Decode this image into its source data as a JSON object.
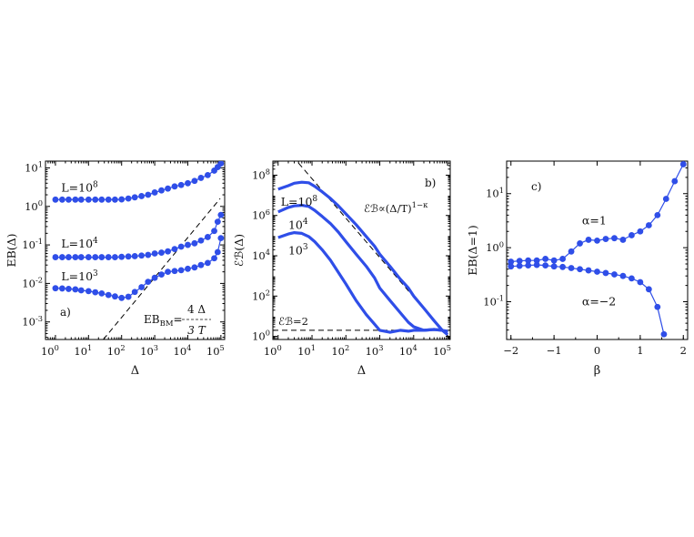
{
  "colors": {
    "series": "#2f4ee8",
    "axis": "#000000",
    "ref": "#000000"
  },
  "chart_data": [
    {
      "panel": "a",
      "type": "scatter",
      "panel_label": "a)",
      "xlabel": "Δ",
      "ylabel": "EB(Δ)",
      "xscale": "log",
      "yscale": "log",
      "xlim": [
        0.5,
        130000
      ],
      "ylim": [
        0.00035,
        15
      ],
      "xticks": [
        1,
        10,
        100,
        1000,
        10000,
        100000
      ],
      "xtick_labels": [
        {
          "b": "10",
          "e": "0"
        },
        {
          "b": "10",
          "e": "1"
        },
        {
          "b": "10",
          "e": "2"
        },
        {
          "b": "10",
          "e": "3"
        },
        {
          "b": "10",
          "e": "4"
        },
        {
          "b": "10",
          "e": "5"
        }
      ],
      "yticks": [
        0.001,
        0.01,
        0.1,
        1,
        10
      ],
      "ytick_labels": [
        {
          "b": "10",
          "e": "-3"
        },
        {
          "b": "10",
          "e": "-2"
        },
        {
          "b": "10",
          "e": "-1"
        },
        {
          "b": "10",
          "e": "0"
        },
        {
          "b": "10",
          "e": "1"
        }
      ],
      "series": [
        {
          "name": "L=10^8",
          "label": {
            "b": "L=10",
            "e": "8"
          },
          "label_at": [
            1.5,
            2.4
          ],
          "x": [
            1,
            1.6,
            2.5,
            4,
            6,
            10,
            16,
            25,
            40,
            63,
            100,
            160,
            250,
            400,
            630,
            1000,
            1600,
            2500,
            4000,
            6300,
            10000,
            16000,
            25000,
            40000,
            63000,
            80000,
            100000
          ],
          "y": [
            1.5,
            1.5,
            1.5,
            1.5,
            1.5,
            1.5,
            1.5,
            1.5,
            1.5,
            1.5,
            1.52,
            1.6,
            1.72,
            1.85,
            2.0,
            2.3,
            2.6,
            2.9,
            3.3,
            3.6,
            4.0,
            4.6,
            5.5,
            6.5,
            8.5,
            10.5,
            13.0
          ]
        },
        {
          "name": "L=10^4",
          "label": {
            "b": "L=10",
            "e": "4"
          },
          "label_at": [
            1.5,
            0.085
          ],
          "x": [
            1,
            1.6,
            2.5,
            4,
            6,
            10,
            16,
            25,
            40,
            63,
            100,
            160,
            250,
            400,
            630,
            1000,
            1600,
            2500,
            4000,
            6300,
            10000,
            16000,
            25000,
            40000,
            63000,
            80000,
            100000
          ],
          "y": [
            0.048,
            0.048,
            0.048,
            0.048,
            0.048,
            0.048,
            0.048,
            0.048,
            0.048,
            0.048,
            0.049,
            0.05,
            0.051,
            0.053,
            0.055,
            0.06,
            0.063,
            0.068,
            0.078,
            0.09,
            0.1,
            0.11,
            0.13,
            0.16,
            0.23,
            0.4,
            0.6
          ]
        },
        {
          "name": "L=10^3",
          "label": {
            "b": "L=10",
            "e": "3"
          },
          "label_at": [
            1.5,
            0.012
          ],
          "x": [
            1,
            1.6,
            2.5,
            4,
            6,
            10,
            16,
            25,
            40,
            63,
            100,
            160,
            250,
            400,
            630,
            1000,
            1600,
            2500,
            4000,
            6300,
            10000,
            16000,
            25000,
            40000,
            63000,
            80000,
            100000
          ],
          "y": [
            0.0075,
            0.0074,
            0.0072,
            0.007,
            0.0066,
            0.0063,
            0.0059,
            0.0055,
            0.005,
            0.0046,
            0.0042,
            0.0045,
            0.006,
            0.008,
            0.011,
            0.014,
            0.017,
            0.02,
            0.021,
            0.022,
            0.024,
            0.026,
            0.03,
            0.034,
            0.045,
            0.065,
            0.15
          ]
        }
      ],
      "ref_line": {
        "x": [
          28,
          95000
        ],
        "y": [
          0.00035,
          1.6
        ],
        "style": "dashed"
      },
      "annotation": {
        "main": "EB",
        "sub": "BM",
        "eq": "=",
        "num": "4 Δ",
        "den": "3 T"
      }
    },
    {
      "panel": "b",
      "type": "line",
      "panel_label": "b)",
      "xlabel": "Δ",
      "ylabel": "ℰℬ(Δ)",
      "xscale": "log",
      "yscale": "log",
      "xlim": [
        0.7,
        120000
      ],
      "ylim": [
        0.7,
        500000000
      ],
      "xticks": [
        1,
        10,
        100,
        1000,
        10000,
        100000
      ],
      "xtick_labels": [
        {
          "b": "10",
          "e": "0"
        },
        {
          "b": "10",
          "e": "1"
        },
        {
          "b": "10",
          "e": "2"
        },
        {
          "b": "10",
          "e": "3"
        },
        {
          "b": "10",
          "e": "4"
        },
        {
          "b": "10",
          "e": "5"
        }
      ],
      "yticks": [
        1,
        100,
        10000,
        1000000,
        100000000
      ],
      "ytick_labels": [
        {
          "b": "10",
          "e": "0"
        },
        {
          "b": "10",
          "e": "2"
        },
        {
          "b": "10",
          "e": "4"
        },
        {
          "b": "10",
          "e": "6"
        },
        {
          "b": "10",
          "e": "8"
        }
      ],
      "series": [
        {
          "name": "L=10^8",
          "label": {
            "b": "L=10",
            "e": "8"
          },
          "label_at": [
            1.2,
            3000000
          ],
          "x": [
            1,
            2,
            3,
            5,
            8,
            12,
            20,
            35,
            60,
            100,
            200,
            400,
            700,
            1000,
            2000,
            4000,
            7000,
            10000,
            20000,
            40000,
            70000,
            100000
          ],
          "y": [
            20000000,
            30000000,
            40000000,
            45000000,
            42000000,
            28000000,
            15000000,
            7000000,
            3000000,
            1200000,
            350000,
            90000,
            30000,
            12000,
            3000,
            700,
            250,
            100,
            25,
            6,
            2,
            1.2
          ]
        },
        {
          "name": "L=10^4",
          "label": {
            "b": "10",
            "e": "4"
          },
          "label_at": [
            2.0,
            220000
          ],
          "x": [
            1,
            2,
            3,
            5,
            8,
            12,
            20,
            35,
            60,
            100,
            200,
            400,
            700,
            1000,
            2000,
            4000,
            7000,
            10000,
            20000,
            40000,
            70000,
            100000
          ],
          "y": [
            1500000,
            2500000,
            3000000,
            3200000,
            2800000,
            1800000,
            900000,
            400000,
            150000,
            50000,
            12000,
            3000,
            800,
            250,
            60,
            15,
            5,
            3,
            2,
            2.2,
            2,
            1.5
          ]
        },
        {
          "name": "L=10^3",
          "label": {
            "b": "10",
            "e": "3"
          },
          "label_at": [
            2.0,
            12000
          ],
          "x": [
            1,
            2,
            3,
            5,
            8,
            12,
            20,
            35,
            60,
            100,
            200,
            400,
            700,
            1000,
            2000,
            4000,
            7000,
            10000,
            20000,
            40000,
            70000,
            100000
          ],
          "y": [
            80000,
            120000,
            140000,
            130000,
            90000,
            50000,
            20000,
            6000,
            1500,
            400,
            60,
            12,
            4,
            2,
            1.6,
            2,
            1.8,
            2,
            2,
            2.2,
            2,
            1.8
          ]
        }
      ],
      "ref_line": {
        "x": [
          4,
          120000
        ],
        "y": [
          400000000,
          0.7
        ],
        "style": "dashed"
      },
      "hline": {
        "y": 2,
        "x": [
          0.7,
          120000
        ],
        "style": "dashed"
      },
      "annotation_power": {
        "text": "ℰℬ∝(Δ/T)",
        "e": "1−κ"
      },
      "annotation_eb2": "ℰℬ=2"
    },
    {
      "panel": "c",
      "type": "line",
      "panel_label": "c)",
      "xlabel": "β",
      "ylabel": "EB(Δ=1)",
      "xscale": "linear",
      "yscale": "log",
      "xlim": [
        -2.1,
        2.1
      ],
      "ylim": [
        0.02,
        40
      ],
      "xticks": [
        -2,
        -1,
        0,
        1,
        2
      ],
      "xtick_labels": [
        "−2",
        "−1",
        "0",
        "1",
        "2"
      ],
      "yticks": [
        0.1,
        1,
        10
      ],
      "ytick_labels": [
        {
          "b": "10",
          "e": "-1"
        },
        {
          "b": "10",
          "e": "0"
        },
        {
          "b": "10",
          "e": "1"
        }
      ],
      "series": [
        {
          "name": "α=1",
          "label": "α=1",
          "label_at": [
            -0.35,
            2.7
          ],
          "x": [
            -2,
            -1.8,
            -1.6,
            -1.4,
            -1.2,
            -1.0,
            -0.8,
            -0.6,
            -0.4,
            -0.2,
            0,
            0.2,
            0.4,
            0.6,
            0.8,
            1.0,
            1.2,
            1.4,
            1.6,
            1.8,
            2.0
          ],
          "y": [
            0.55,
            0.57,
            0.58,
            0.58,
            0.62,
            0.58,
            0.62,
            0.85,
            1.2,
            1.4,
            1.35,
            1.45,
            1.5,
            1.4,
            1.7,
            2.0,
            2.6,
            4.0,
            8.0,
            17,
            35
          ]
        },
        {
          "name": "α=−2",
          "label": "α=−2",
          "label_at": [
            -0.35,
            0.085
          ],
          "x": [
            -2,
            -1.8,
            -1.6,
            -1.4,
            -1.2,
            -1.0,
            -0.8,
            -0.6,
            -0.4,
            -0.2,
            0,
            0.2,
            0.4,
            0.6,
            0.8,
            1.0,
            1.2,
            1.4,
            1.55
          ],
          "y": [
            0.45,
            0.46,
            0.47,
            0.48,
            0.47,
            0.45,
            0.44,
            0.42,
            0.4,
            0.38,
            0.36,
            0.34,
            0.32,
            0.3,
            0.27,
            0.23,
            0.17,
            0.08,
            0.025
          ]
        }
      ]
    }
  ]
}
